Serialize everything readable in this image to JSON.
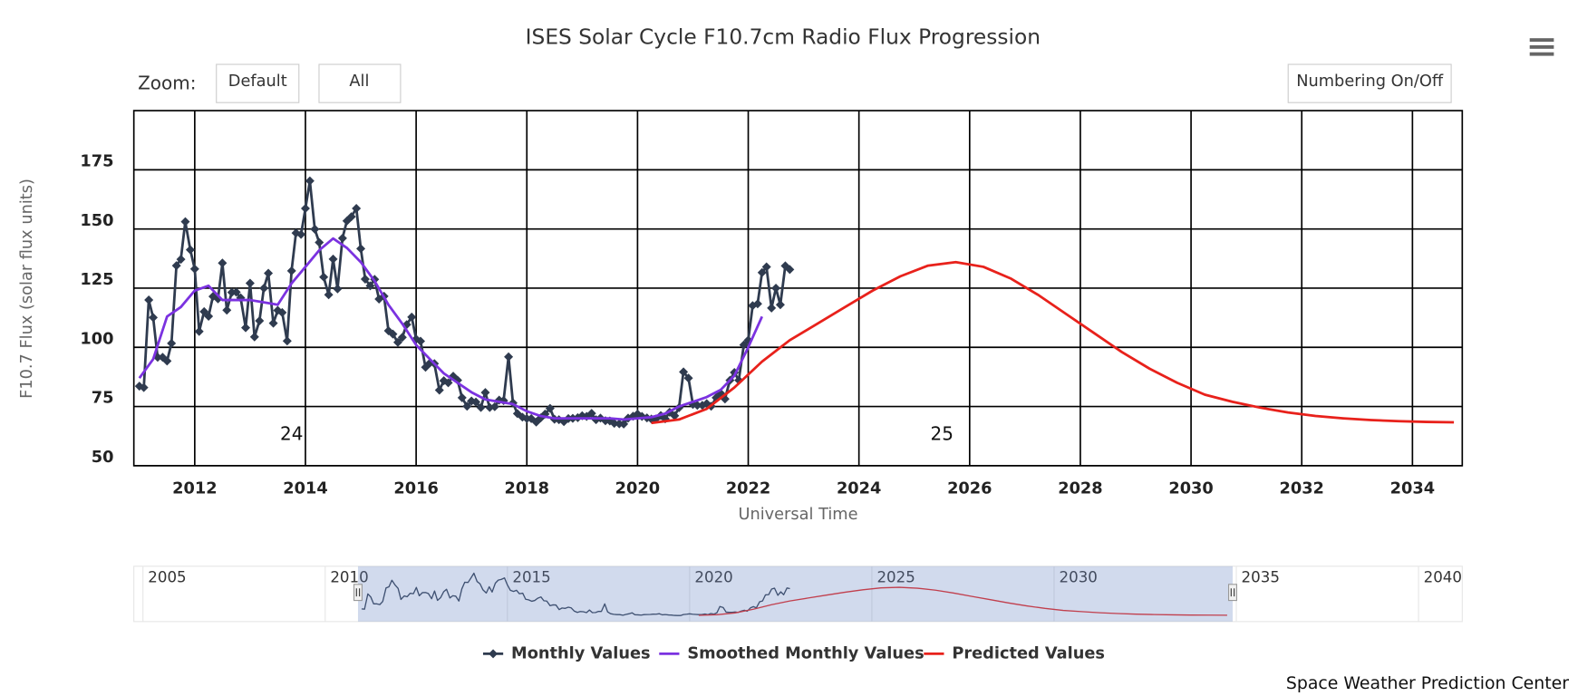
{
  "chart_data": {
    "type": "line",
    "title": "ISES Solar Cycle F10.7cm Radio Flux Progression",
    "xlabel": "Universal Time",
    "ylabel": "F10.7 Flux (solar flux units)",
    "xlim": [
      2010.9,
      2034.9
    ],
    "xticks": [
      2012,
      2014,
      2016,
      2018,
      2020,
      2022,
      2024,
      2026,
      2028,
      2030,
      2032,
      2034
    ],
    "ylim": [
      50,
      200
    ],
    "yticks": [
      50,
      75,
      100,
      125,
      150,
      175
    ],
    "grid": true,
    "series": [
      {
        "name": "Monthly Values",
        "color": "#2f3b4f",
        "marker": "diamond",
        "x": [
          2011,
          2011.08,
          2011.17,
          2011.25,
          2011.33,
          2011.42,
          2011.5,
          2011.58,
          2011.67,
          2011.75,
          2011.83,
          2011.92,
          2012,
          2012.08,
          2012.17,
          2012.25,
          2012.33,
          2012.42,
          2012.5,
          2012.58,
          2012.67,
          2012.75,
          2012.83,
          2012.92,
          2013,
          2013.08,
          2013.17,
          2013.25,
          2013.33,
          2013.42,
          2013.5,
          2013.58,
          2013.67,
          2013.75,
          2013.83,
          2013.92,
          2014,
          2014.08,
          2014.17,
          2014.25,
          2014.33,
          2014.42,
          2014.5,
          2014.58,
          2014.67,
          2014.75,
          2014.83,
          2014.92,
          2015,
          2015.08,
          2015.17,
          2015.25,
          2015.33,
          2015.42,
          2015.5,
          2015.58,
          2015.67,
          2015.75,
          2015.83,
          2015.92,
          2016,
          2016.08,
          2016.17,
          2016.25,
          2016.33,
          2016.42,
          2016.5,
          2016.58,
          2016.67,
          2016.75,
          2016.83,
          2016.92,
          2017,
          2017.08,
          2017.17,
          2017.25,
          2017.33,
          2017.42,
          2017.5,
          2017.58,
          2017.67,
          2017.75,
          2017.83,
          2017.92,
          2018,
          2018.08,
          2018.17,
          2018.25,
          2018.33,
          2018.42,
          2018.5,
          2018.58,
          2018.67,
          2018.75,
          2018.83,
          2018.92,
          2019,
          2019.08,
          2019.17,
          2019.25,
          2019.33,
          2019.42,
          2019.5,
          2019.58,
          2019.67,
          2019.75,
          2019.83,
          2019.92,
          2020,
          2020.08,
          2020.17,
          2020.25,
          2020.33,
          2020.42,
          2020.5,
          2020.58,
          2020.67,
          2020.75,
          2020.83,
          2020.92,
          2021,
          2021.08,
          2021.17,
          2021.25,
          2021.33,
          2021.42,
          2021.5,
          2021.58,
          2021.67,
          2021.75,
          2021.83,
          2021.92,
          2022,
          2022.08,
          2022.17,
          2022.25,
          2022.33,
          2022.42,
          2022.5,
          2022.58,
          2022.67,
          2022.75
        ],
        "values": [
          83.6,
          83,
          120,
          112.6,
          95.8,
          95.8,
          94.2,
          101.7,
          134.5,
          137.2,
          153.1,
          141.2,
          133.1,
          106.7,
          115.1,
          113.1,
          121.5,
          120.5,
          135.6,
          115.7,
          123.2,
          123.3,
          120.9,
          108.3,
          127.1,
          104.4,
          111.2,
          125.0,
          131.3,
          110.2,
          115.6,
          114.7,
          102.7,
          132.3,
          148.3,
          147.7,
          158.7,
          170.3,
          149.9,
          144.3,
          129.7,
          122.2,
          137.3,
          124.7,
          146.1,
          153.4,
          155.2,
          158.7,
          141.7,
          128.8,
          126.0,
          128.7,
          120.4,
          121.6,
          107.0,
          105.6,
          102.1,
          104.2,
          109.6,
          112.8,
          103.5,
          102.6,
          91.6,
          93.4,
          93.1,
          81.9,
          85.9,
          85.0,
          87.8,
          86.1,
          78.7,
          75.1,
          77.3,
          76.9,
          74.6,
          80.9,
          74.6,
          74.9,
          77.7,
          77.5,
          96.0,
          76.5,
          72.0,
          70.5,
          69.9,
          69.9,
          68.4,
          70.2,
          71.8,
          74.2,
          69.6,
          69.4,
          68.6,
          69.9,
          70.0,
          70.3,
          71.1,
          70.8,
          72.1,
          69.4,
          70.1,
          69.0,
          68.9,
          67.9,
          67.7,
          67.6,
          70.1,
          70.9,
          71.8,
          70.8,
          70.2,
          69.7,
          69.7,
          71.2,
          69.8,
          72.6,
          71.1,
          74.5,
          89.6,
          87.0,
          75.9,
          75.5,
          75.5,
          76.2,
          75.1,
          78.7,
          80.6,
          78.2,
          86.1,
          89.4,
          86.1,
          101.0,
          103.0,
          117.6,
          118.4,
          131.6,
          134.0,
          116.6,
          125.0,
          118.0,
          134.4,
          132.9
        ]
      },
      {
        "name": "Smoothed Monthly Values",
        "color": "#7b32e0",
        "x": [
          2011,
          2011.25,
          2011.5,
          2011.75,
          2012,
          2012.25,
          2012.5,
          2012.75,
          2013,
          2013.25,
          2013.5,
          2013.75,
          2014,
          2014.25,
          2014.5,
          2014.75,
          2015,
          2015.25,
          2015.5,
          2015.75,
          2016,
          2016.25,
          2016.5,
          2016.75,
          2017,
          2017.25,
          2017.5,
          2017.75,
          2018,
          2018.25,
          2018.5,
          2018.75,
          2019,
          2019.25,
          2019.5,
          2019.75,
          2020,
          2020.25,
          2020.5,
          2020.75,
          2021,
          2021.25,
          2021.5,
          2021.75,
          2022,
          2022.25
        ],
        "values": [
          87,
          95,
          113,
          117,
          124,
          126,
          120,
          120,
          120,
          119,
          118,
          127,
          134,
          141,
          146,
          142,
          136,
          128,
          118,
          110,
          101,
          95,
          89,
          85,
          81,
          78,
          77,
          76,
          73,
          71,
          70,
          70,
          70,
          70,
          70,
          69.5,
          70,
          70.5,
          72,
          75,
          77,
          79,
          82,
          88,
          100,
          113
        ]
      },
      {
        "name": "Predicted Values",
        "color": "#e8211b",
        "x": [
          2020.25,
          2020.75,
          2021.25,
          2021.75,
          2022.25,
          2022.75,
          2023.25,
          2023.75,
          2024.25,
          2024.75,
          2025.25,
          2025.75,
          2026.25,
          2026.75,
          2027.25,
          2027.75,
          2028.25,
          2028.75,
          2029.25,
          2029.75,
          2030.25,
          2030.75,
          2031.25,
          2031.75,
          2032.25,
          2032.75,
          2033.25,
          2033.75,
          2034.25,
          2034.75
        ],
        "values": [
          68,
          69.5,
          74,
          83,
          94,
          103,
          110,
          117,
          124,
          130,
          134.5,
          136,
          134,
          129,
          122,
          114,
          106,
          98,
          91,
          85,
          80,
          77,
          74.5,
          72.5,
          71,
          70,
          69.3,
          68.8,
          68.5,
          68.3
        ]
      }
    ],
    "annotations": [
      {
        "text": "24",
        "x": 2013.75,
        "y": 63
      },
      {
        "text": "25",
        "x": 2025.5,
        "y": 63
      }
    ],
    "navigator": {
      "xlim": [
        2004.75,
        2041.2
      ],
      "xticks": [
        2005,
        2010,
        2015,
        2020,
        2025,
        2030,
        2035,
        2040
      ],
      "ylim": [
        53,
        187
      ]
    }
  },
  "controls": {
    "zoom_label": "Zoom:",
    "buttons": [
      "Default",
      "All"
    ],
    "numbering": "Numbering On/Off"
  },
  "credit": "Space Weather Prediction Center"
}
